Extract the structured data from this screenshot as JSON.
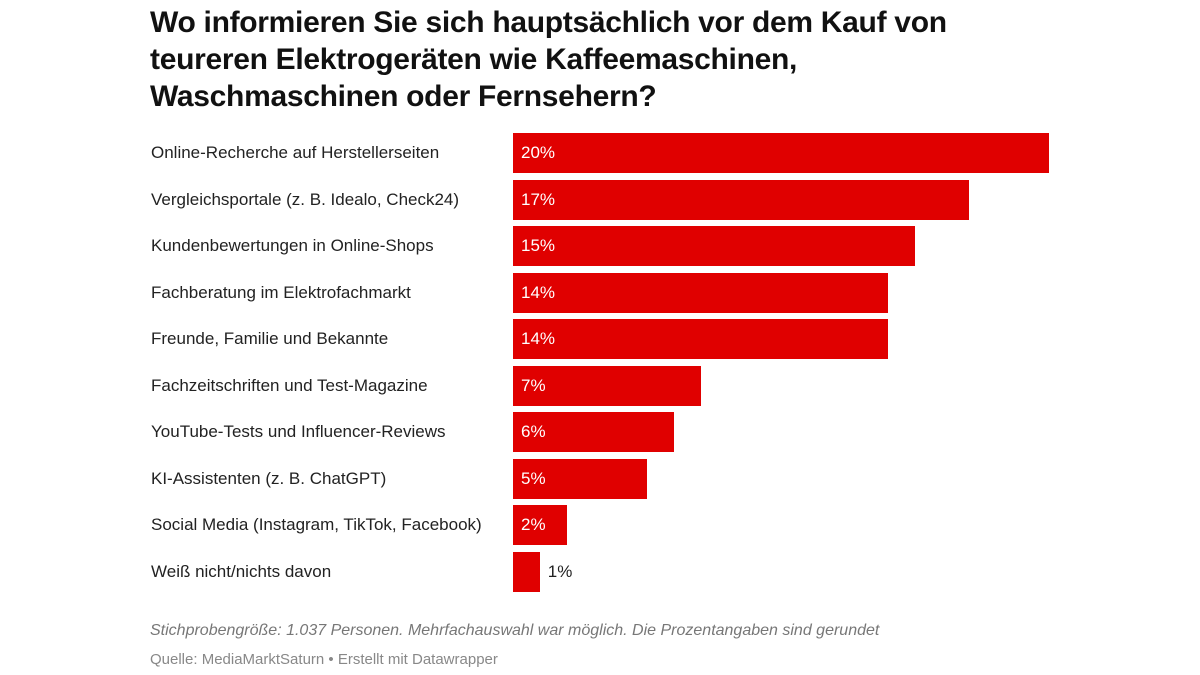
{
  "chart_data": {
    "type": "bar",
    "orientation": "horizontal",
    "title": "Wo informieren Sie sich hauptsächlich vor dem Kauf von teureren Elektrogeräten wie Kaffeemaschinen, Waschmaschinen oder Fernsehern?",
    "categories": [
      "Online-Recherche auf Herstellerseiten",
      "Vergleichsportale (z. B. Idealo, Check24)",
      "Kundenbewertungen in Online-Shops",
      "Fachberatung im Elektrofachmarkt",
      "Freunde, Familie und Bekannte",
      "Fachzeitschriften und Test-Magazine",
      "YouTube-Tests und Influencer-Reviews",
      "KI-Assistenten (z. B. ChatGPT)",
      "Social Media (Instagram, TikTok, Facebook)",
      "Weiß nicht/nichts davon"
    ],
    "values": [
      20,
      17,
      15,
      14,
      14,
      7,
      6,
      5,
      2,
      1
    ],
    "value_labels": [
      "20%",
      "17%",
      "15%",
      "14%",
      "14%",
      "7%",
      "6%",
      "5%",
      "2%",
      "1%"
    ],
    "xlim": [
      0,
      20
    ],
    "grid": false,
    "bar_color": "#e00000",
    "note": "Stichprobengröße: 1.037 Personen. Mehrfachauswahl war möglich. Die Prozentangaben sind gerundet",
    "source": "Quelle: MediaMarktSaturn • Erstellt mit Datawrapper"
  }
}
